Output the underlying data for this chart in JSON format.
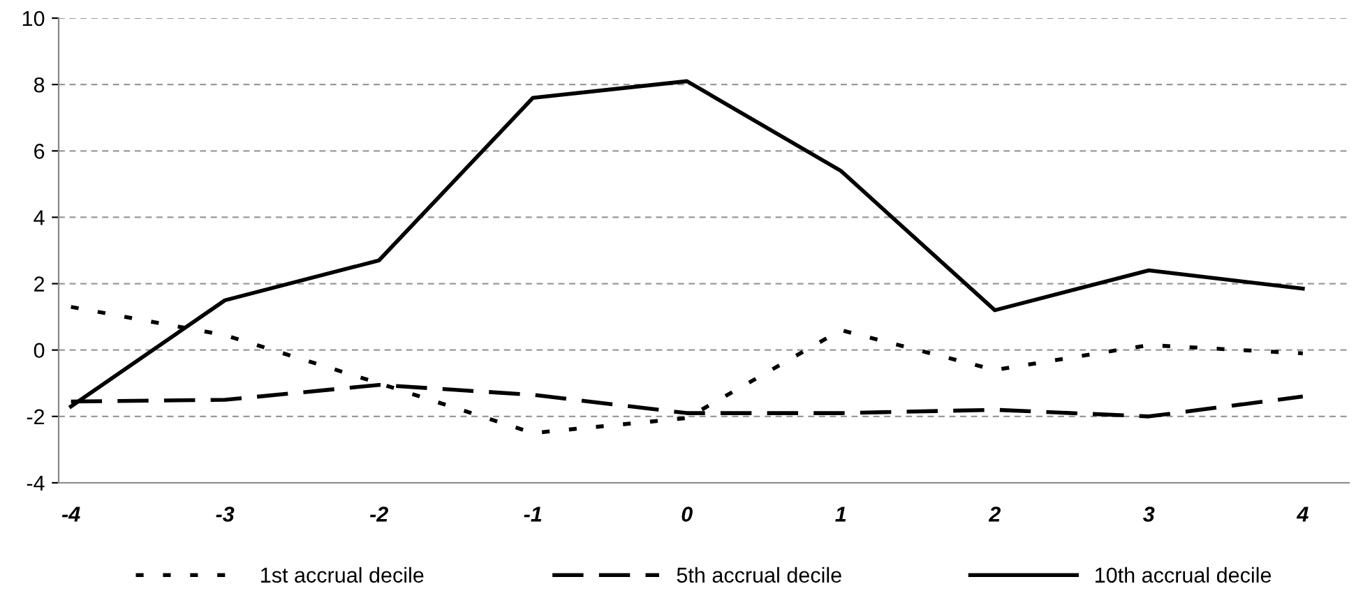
{
  "chart_data": {
    "type": "line",
    "categories": [
      "-4",
      "-3",
      "-2",
      "-1",
      "0",
      "1",
      "2",
      "3",
      "4"
    ],
    "series": [
      {
        "name": "1st accrual decile",
        "color": "#000000",
        "line_style": "dotted",
        "values": [
          1.3,
          0.45,
          -1.0,
          -2.5,
          -2.05,
          0.6,
          -0.6,
          0.15,
          -0.1
        ]
      },
      {
        "name": "5th accrual decile",
        "color": "#000000",
        "line_style": "dashed",
        "values": [
          -1.55,
          -1.5,
          -1.05,
          -1.35,
          -1.9,
          -1.9,
          -1.8,
          -2.0,
          -1.4
        ]
      },
      {
        "name": "10th accrual decile",
        "color": "#000000",
        "line_style": "solid",
        "values": [
          -1.7,
          1.5,
          2.7,
          7.6,
          8.1,
          5.4,
          1.2,
          2.4,
          1.85
        ]
      }
    ],
    "ylim": [
      -4,
      10
    ],
    "yticks": [
      -4,
      -2,
      0,
      2,
      4,
      6,
      8,
      10
    ],
    "grid": "y",
    "legend": "bottom",
    "marker": "none"
  }
}
